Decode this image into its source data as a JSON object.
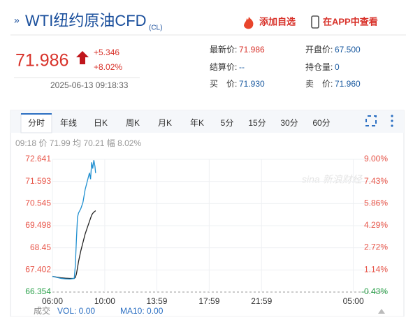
{
  "header": {
    "mark": "»",
    "title": "WTI纽约原油CFD",
    "code": "(CL)",
    "add_watchlist": "添加自选",
    "view_app": "在APP中查看"
  },
  "quote": {
    "price": "71.986",
    "change": "+5.346",
    "change_pct": "+8.02%",
    "time": "2025-06-13 09:18:33"
  },
  "stats": [
    [
      {
        "label": "最新价:",
        "value": "71.986"
      },
      {
        "label": "结算价:",
        "value": "--"
      },
      {
        "label": "买　价:",
        "value": "71.930"
      }
    ],
    [
      {
        "label": "开盘价:",
        "value": "67.500"
      },
      {
        "label": "持仓量:",
        "value": "0"
      },
      {
        "label": "卖　价:",
        "value": "71.960"
      }
    ]
  ],
  "tabs": [
    "分时",
    "年线",
    "日K",
    "周K",
    "月K",
    "年K",
    "5分",
    "15分",
    "30分",
    "60分"
  ],
  "info_line": "09:18 价 71.99 均 70.21 幅 8.02%",
  "watermark": "sina 新浪财经",
  "volume": {
    "label": "成交",
    "vol": "VOL: 0.00",
    "ma10": "MA10: 0.00"
  },
  "chart_data": {
    "type": "line",
    "x": [
      "06:00",
      "06:20",
      "06:40",
      "07:00",
      "07:20",
      "07:40",
      "07:45",
      "07:50",
      "07:55",
      "08:00",
      "08:10",
      "08:20",
      "08:30",
      "08:40",
      "08:50",
      "08:55",
      "09:00",
      "09:05",
      "09:10",
      "09:15",
      "09:18"
    ],
    "series": [
      {
        "name": "价",
        "color": "#1f8fd0",
        "values": [
          67.1,
          67.05,
          67.0,
          66.98,
          66.97,
          67.0,
          67.6,
          68.8,
          69.9,
          70.1,
          70.3,
          70.6,
          71.2,
          71.6,
          72.0,
          71.7,
          72.5,
          72.2,
          72.6,
          72.3,
          71.99
        ]
      },
      {
        "name": "均",
        "color": "#222222",
        "values": [
          67.1,
          67.06,
          67.03,
          67.01,
          67.0,
          67.0,
          67.05,
          67.2,
          67.5,
          67.8,
          68.3,
          68.7,
          69.1,
          69.4,
          69.7,
          69.85,
          70.0,
          70.08,
          70.14,
          70.18,
          70.21
        ]
      }
    ],
    "xlim": [
      "06:00",
      "05:30"
    ],
    "xticks": [
      "06:00",
      "10:00",
      "13:59",
      "17:59",
      "21:59",
      "05:00"
    ],
    "ylim": [
      66.354,
      72.641
    ],
    "yticks": [
      72.641,
      71.593,
      70.545,
      69.498,
      68.45,
      67.402,
      66.354
    ],
    "y2lim": [
      -0.43,
      9.0
    ],
    "y2ticks": [
      {
        "value": 9.0,
        "label": "9.00%"
      },
      {
        "value": 7.43,
        "label": "7.43%"
      },
      {
        "value": 5.86,
        "label": "5.86%"
      },
      {
        "value": 4.29,
        "label": "4.29%"
      },
      {
        "value": 2.72,
        "label": "2.72%"
      },
      {
        "value": 1.14,
        "label": "1.14%"
      },
      {
        "value": -0.43,
        "label": "-0.43%"
      }
    ],
    "up_color": "#e8564a",
    "down_color": "#2aa14a",
    "grid": true
  }
}
